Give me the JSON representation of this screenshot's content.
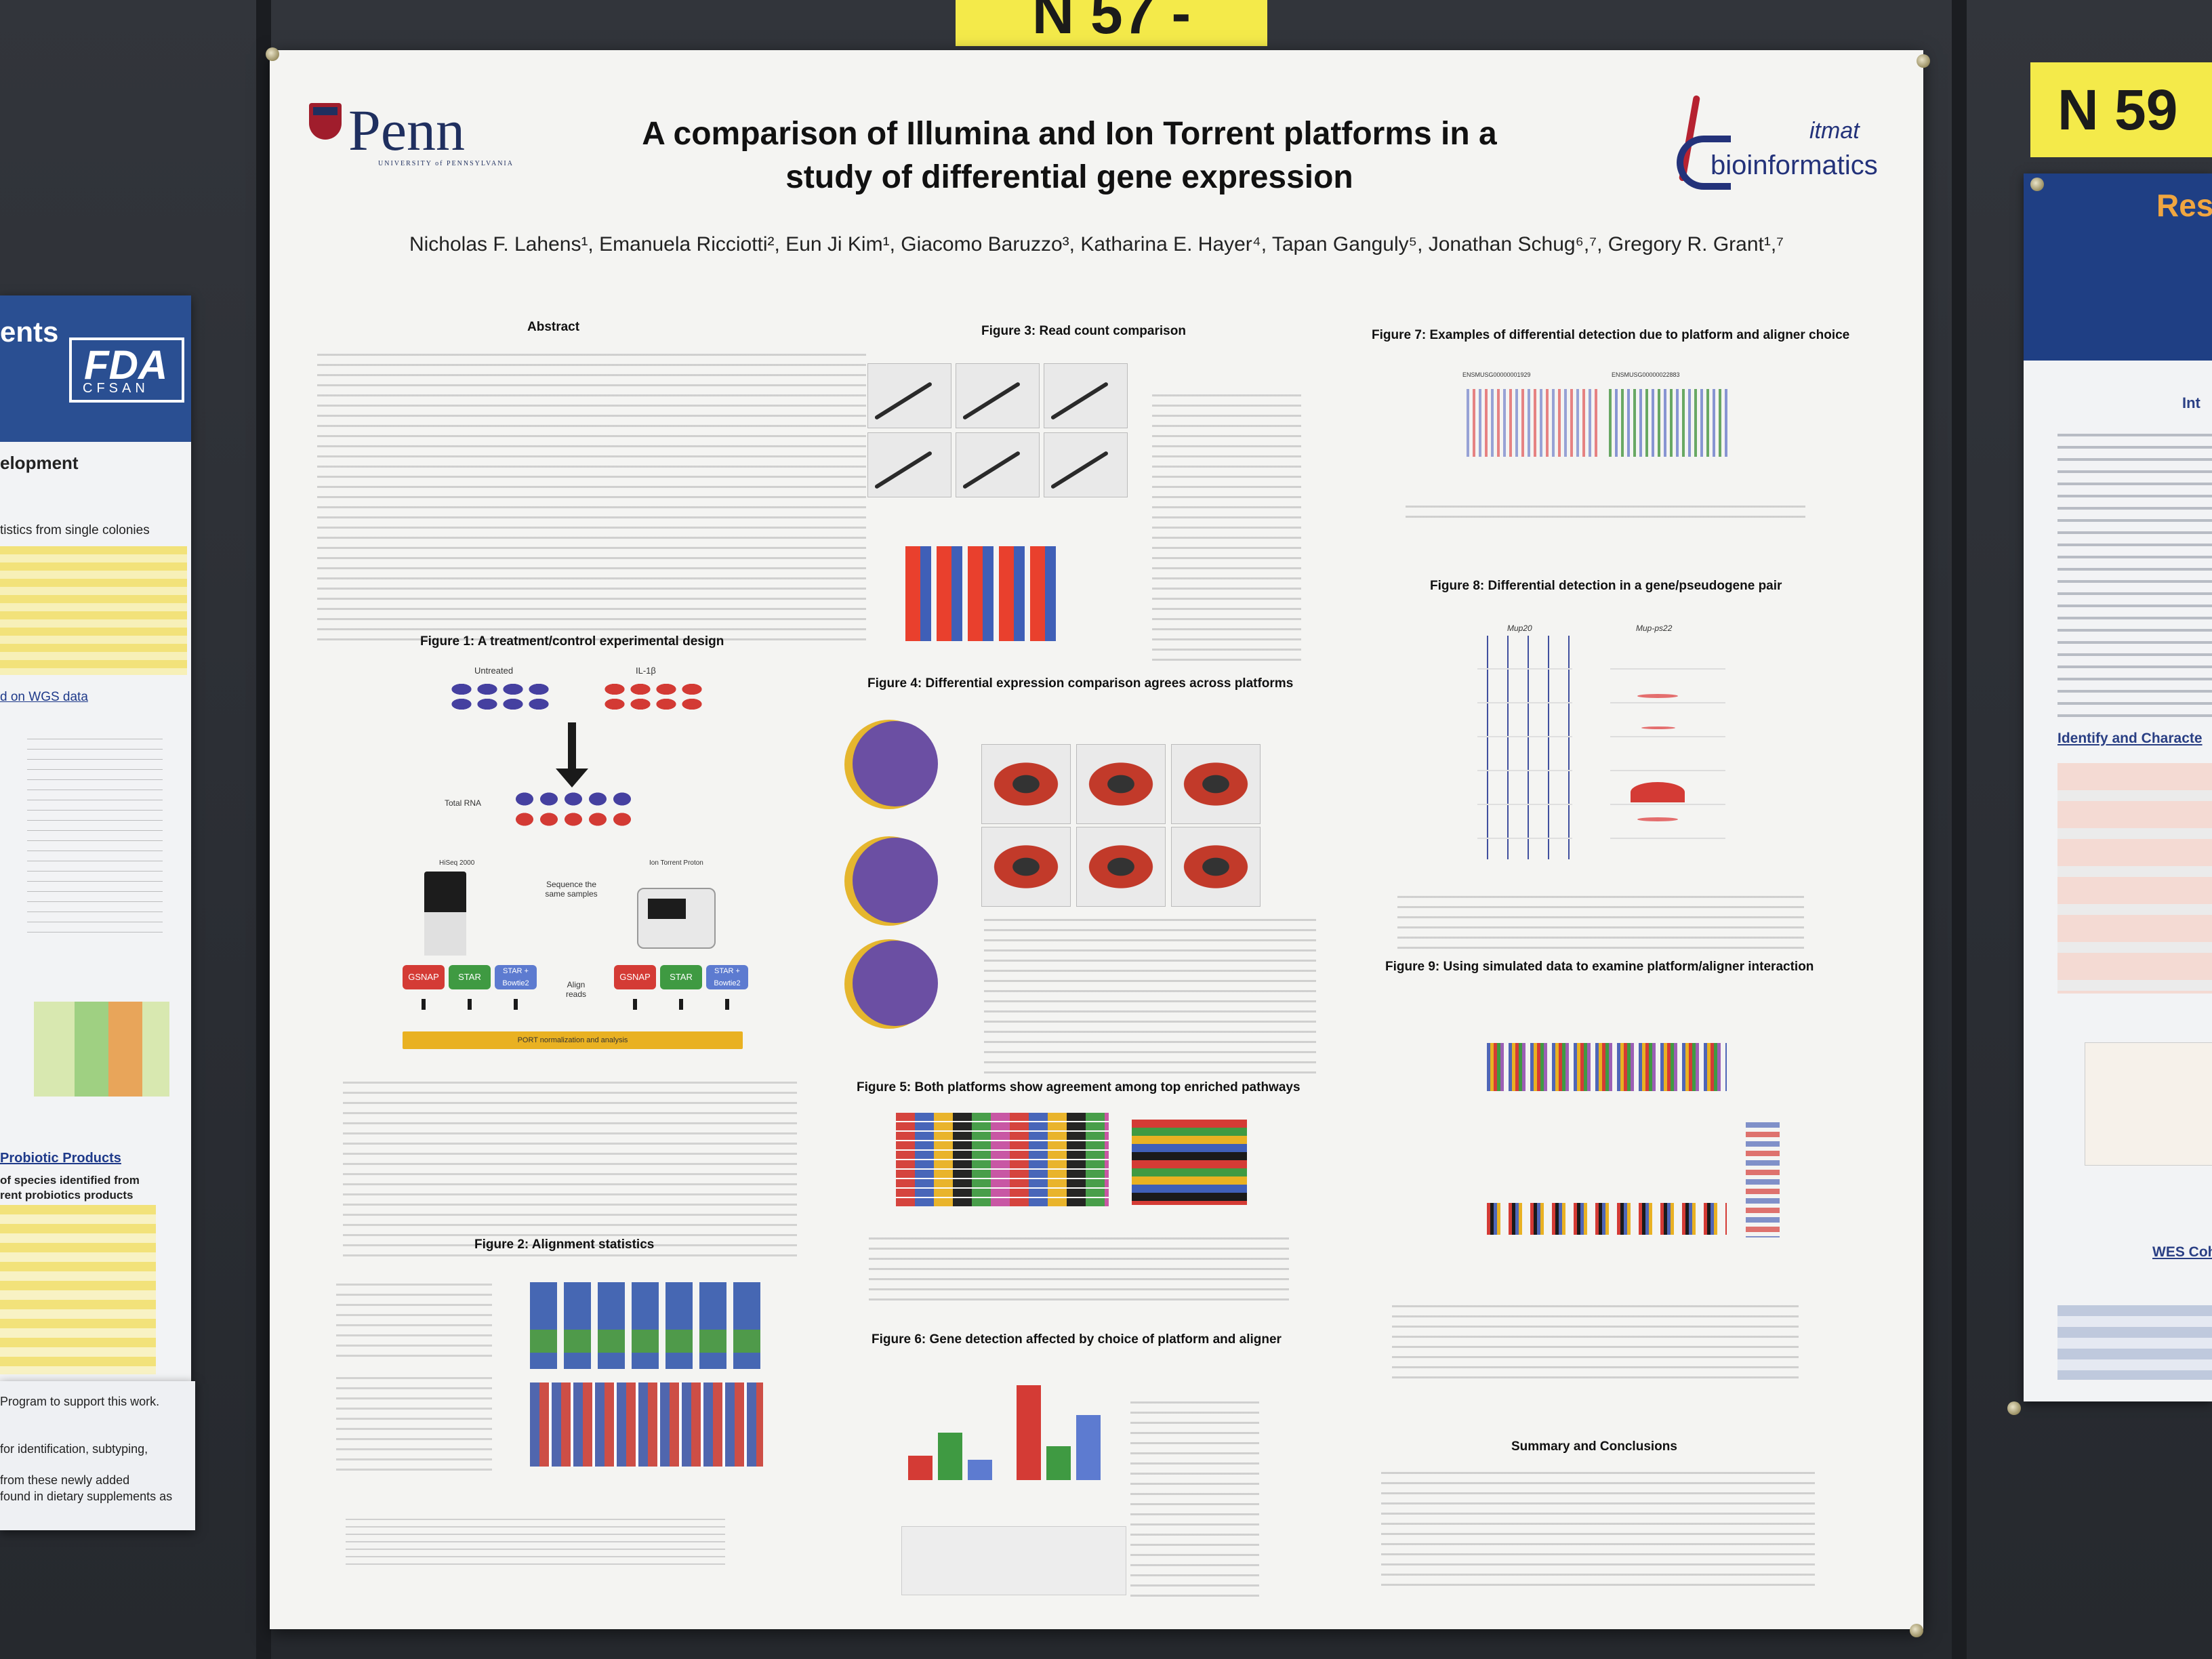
{
  "booth_tags": {
    "left": "N 57 -",
    "right": "N 59"
  },
  "poster": {
    "logo_left": "Penn",
    "logo_left_sub": "UNIVERSITY of PENNSYLVANIA",
    "logo_right_top": "itmat",
    "logo_right_bottom": "bioinformatics",
    "title_line1": "A comparison of Illumina and Ion Torrent platforms in a",
    "title_line2": "study of differential gene expression",
    "authors": "Nicholas F. Lahens¹, Emanuela Ricciotti², Eun Ji Kim¹, Giacomo Baruzzo³, Katharina E. Hayer⁴, Tapan Ganguly⁵, Jonathan Schug⁶,⁷, Gregory R. Grant¹,⁷",
    "sections": {
      "abstract": "Abstract",
      "fig1": "Figure 1: A treatment/control experimental design",
      "fig2": "Figure 2: Alignment statistics",
      "fig3": "Figure 3: Read count comparison",
      "fig4": "Figure 4: Differential expression comparison agrees across platforms",
      "fig5": "Figure 5: Both platforms show agreement among top enriched pathways",
      "fig6": "Figure 6: Gene detection affected by choice of platform and aligner",
      "fig7": "Figure 7: Examples of differential detection due to platform and aligner choice",
      "fig8": "Figure 8: Differential detection in a gene/pseudogene pair",
      "fig9": "Figure 9: Using simulated data to examine platform/aligner interaction",
      "summary": "Summary and Conclusions"
    },
    "fig1_labels": {
      "untreated": "Untreated",
      "il1b": "IL-1β",
      "total_rna": "Total RNA",
      "sequence": "Sequence the same samples",
      "align": "Align reads",
      "hiseq": "HiSeq 2000",
      "proton": "Ion Torrent Proton",
      "gsnap": "GSNAP",
      "star": "STAR",
      "star_bowtie": "STAR + Bowtie2",
      "port": "PORT normalization and analysis"
    },
    "fig8_genes": {
      "left": "Mup20",
      "right": "Mup-ps22"
    },
    "fig7_genes": {
      "left": "ENSMUSG00000001929",
      "right": "ENSMUSG00000022883"
    }
  },
  "side_left": {
    "heading": "ents",
    "logo": "FDA",
    "logo_sub": "CFSAN",
    "subheading": "elopment",
    "text1": "tistics from single colonies",
    "text2": "d on WGS data",
    "text3": "Probiotic Products",
    "text4": "of species identified from",
    "text5": "rent probiotics products",
    "text6": "Program to support this work.",
    "text7": "for identification, subtyping,",
    "text8": "from these newly added",
    "text9": "found in dietary supplements as"
  },
  "side_right": {
    "heading": "Res",
    "text1": "Int",
    "text2": "Identify and Characte",
    "text3": "WES Coho"
  },
  "colors": {
    "penn_blue": "#1f2f5f",
    "penn_red": "#a01d2c",
    "purple": "#6b4fa3",
    "yellow": "#e5b62e",
    "red": "#d43b35",
    "green": "#3f9a42",
    "blue_btn": "#5d7bd0"
  }
}
